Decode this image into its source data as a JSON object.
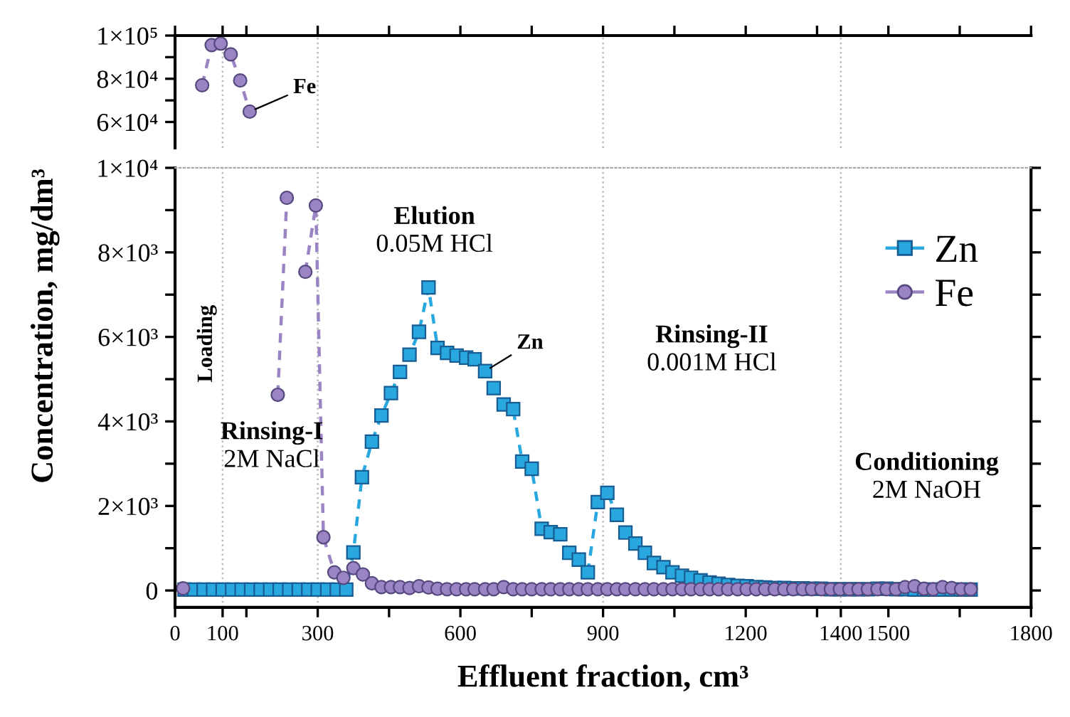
{
  "chart_data": [
    {
      "type": "line",
      "xlim": [
        0,
        1800
      ],
      "ylim": [
        48000,
        100000
      ],
      "tick_labels": "y",
      "line_style": "dashed",
      "grid": false,
      "legend": false,
      "xticks": [
        0,
        100,
        {
          "value": 150,
          "label": null
        },
        300,
        {
          "value": 450,
          "label": null
        },
        600,
        {
          "value": 750,
          "label": null
        },
        900,
        {
          "value": 1050,
          "label": null
        },
        1200,
        {
          "value": 1350,
          "label": null
        },
        1400,
        1500,
        {
          "value": 1650,
          "label": null
        },
        1800
      ],
      "yticks": [
        {
          "value": 60000,
          "label": "6×10⁴"
        },
        {
          "value": 70000,
          "label": null
        },
        {
          "value": 80000,
          "label": "8×10⁴"
        },
        {
          "value": 90000,
          "label": null
        },
        {
          "value": 100000,
          "label": "1×10⁵"
        }
      ],
      "ref_lines": [
        {
          "axis": "x",
          "value": 100
        },
        {
          "axis": "x",
          "value": 300
        },
        {
          "axis": "x",
          "value": 900
        },
        {
          "axis": "x",
          "value": 1400
        }
      ],
      "series": [
        {
          "color": "#9b84c4",
          "marker": "circle",
          "x": [
            57,
            77,
            96,
            117,
            137,
            157
          ],
          "values": [
            77000,
            95600,
            96300,
            91300,
            79200,
            64800
          ]
        }
      ],
      "annotations": [
        {
          "text": "Fe",
          "x": 157,
          "y": 64800
        }
      ]
    },
    {
      "type": "line",
      "xlabel": "Effluent fraction, cm³",
      "ylabel": "Concentration, mg/dm³",
      "xlim": [
        0,
        1800
      ],
      "ylim": [
        -400,
        10000
      ],
      "line_style": "dashed",
      "grid": false,
      "legend": "top right",
      "xticks": [
        0,
        100,
        {
          "value": 150,
          "label": null
        },
        300,
        {
          "value": 450,
          "label": null
        },
        600,
        {
          "value": 750,
          "label": null
        },
        900,
        {
          "value": 1050,
          "label": null
        },
        1200,
        {
          "value": 1350,
          "label": null
        },
        1400,
        1500,
        {
          "value": 1650,
          "label": null
        },
        1800
      ],
      "yticks": [
        {
          "value": 0,
          "label": "0"
        },
        {
          "value": 1000,
          "label": null
        },
        {
          "value": 2000,
          "label": "2×10³"
        },
        {
          "value": 3000,
          "label": null
        },
        {
          "value": 4000,
          "label": "4×10³"
        },
        {
          "value": 5000,
          "label": null
        },
        {
          "value": 6000,
          "label": "6×10³"
        },
        {
          "value": 7000,
          "label": null
        },
        {
          "value": 8000,
          "label": "8×10³"
        },
        {
          "value": 9000,
          "label": null
        },
        {
          "value": 10000,
          "label": "1×10⁴"
        }
      ],
      "ref_lines": [
        {
          "axis": "x",
          "value": 100,
          "label": "Loading"
        },
        {
          "axis": "x",
          "value": 300
        },
        {
          "axis": "x",
          "value": 900
        },
        {
          "axis": "x",
          "value": 1400
        }
      ],
      "series": [
        {
          "name": "Zn",
          "color": "#29a8e0",
          "marker": "square",
          "x": [
            20,
            40,
            60,
            80,
            100,
            120,
            140,
            160,
            180,
            200,
            220,
            240,
            260,
            280,
            300,
            320,
            340,
            360,
            375,
            393,
            414,
            434,
            454,
            473,
            493,
            513,
            533,
            552,
            572,
            592,
            612,
            630,
            652,
            670,
            691,
            711,
            730,
            750,
            771,
            790,
            810,
            829,
            849,
            868,
            889,
            909,
            929,
            947,
            968,
            988,
            1007,
            1027,
            1046,
            1066,
            1085,
            1105,
            1124,
            1143,
            1163,
            1183,
            1202,
            1222,
            1241,
            1261,
            1281,
            1300,
            1320,
            1339,
            1359,
            1379,
            1398,
            1418,
            1437,
            1457,
            1477,
            1496,
            1516,
            1535,
            1555,
            1575,
            1594,
            1614,
            1633,
            1653,
            1673
          ],
          "values": [
            20,
            20,
            20,
            20,
            20,
            20,
            20,
            20,
            20,
            20,
            20,
            20,
            20,
            20,
            20,
            20,
            20,
            20,
            900,
            2680,
            3520,
            4140,
            4670,
            5170,
            5580,
            6120,
            7170,
            5740,
            5620,
            5560,
            5510,
            5470,
            5190,
            4790,
            4400,
            4290,
            3050,
            2880,
            1460,
            1380,
            1330,
            890,
            730,
            430,
            2090,
            2310,
            1790,
            1370,
            1110,
            890,
            650,
            550,
            430,
            350,
            300,
            240,
            190,
            160,
            130,
            110,
            100,
            80,
            70,
            60,
            60,
            50,
            50,
            40,
            40,
            30,
            30,
            30,
            30,
            30,
            40,
            40,
            30,
            30,
            20,
            20,
            20,
            20,
            20,
            20,
            20
          ]
        },
        {
          "name": "Fe",
          "color": "#9b84c4",
          "marker": "circle",
          "x": [
            17,
            37,
            57,
            77,
            96,
            117,
            137,
            157,
            177,
            196,
            216,
            235,
            255,
            274,
            296,
            312,
            335,
            354,
            375,
            395,
            414,
            434,
            454,
            473,
            493,
            513,
            533,
            552,
            572,
            592,
            612,
            630,
            652,
            670,
            691,
            711,
            730,
            750,
            771,
            790,
            810,
            829,
            849,
            868,
            889,
            909,
            929,
            947,
            968,
            988,
            1007,
            1027,
            1046,
            1066,
            1085,
            1105,
            1124,
            1143,
            1163,
            1183,
            1202,
            1222,
            1241,
            1261,
            1281,
            1300,
            1320,
            1339,
            1359,
            1379,
            1398,
            1418,
            1437,
            1457,
            1477,
            1496,
            1516,
            1535,
            1555,
            1575,
            1594,
            1614,
            1633,
            1653,
            1673
          ],
          "values": [
            50,
            null,
            null,
            null,
            null,
            null,
            null,
            null,
            null,
            null,
            4630,
            9290,
            null,
            7540,
            9110,
            1260,
            430,
            300,
            530,
            380,
            170,
            80,
            80,
            80,
            60,
            100,
            70,
            40,
            30,
            30,
            30,
            30,
            30,
            30,
            80,
            30,
            30,
            30,
            30,
            30,
            30,
            30,
            30,
            30,
            30,
            30,
            30,
            30,
            30,
            30,
            30,
            30,
            30,
            30,
            30,
            30,
            30,
            30,
            30,
            30,
            30,
            30,
            30,
            30,
            30,
            30,
            30,
            30,
            30,
            30,
            30,
            30,
            30,
            30,
            30,
            30,
            30,
            80,
            100,
            40,
            30,
            80,
            60,
            30,
            30
          ]
        }
      ],
      "annotations": [
        {
          "text": "Zn",
          "x": 652,
          "y": 5190
        },
        "Rinsing-I\n2M NaCl",
        "Elution\n0.05M HCl",
        "Rinsing-II\n0.001M HCl",
        "Conditioning\n2M NaOH"
      ]
    }
  ]
}
